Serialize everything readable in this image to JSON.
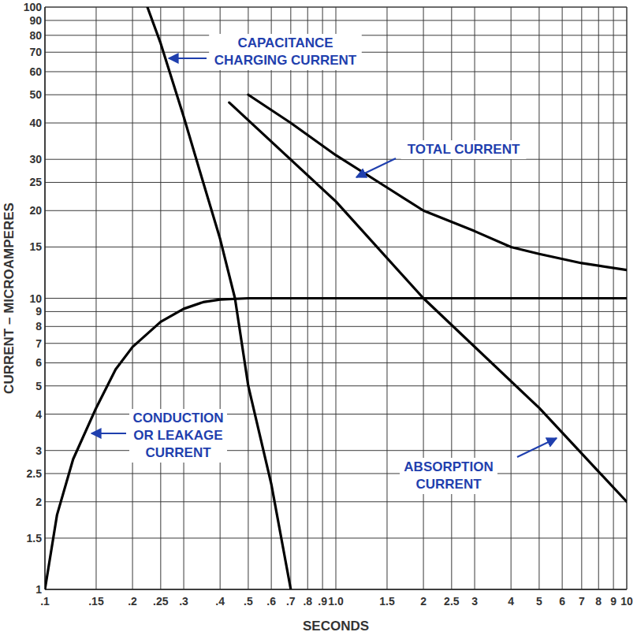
{
  "chart_data": {
    "type": "line",
    "x_label": "SECONDS",
    "y_label": "CURRENT – MICROAMPERES",
    "log": true,
    "grid": true,
    "xlim": [
      0.1,
      10
    ],
    "ylim": [
      1,
      100
    ],
    "xticks": [
      {
        "value": 0.1,
        "label": ".1"
      },
      {
        "value": 0.15,
        "label": ".15"
      },
      {
        "value": 0.2,
        "label": ".2"
      },
      {
        "value": 0.25,
        "label": ".25"
      },
      {
        "value": 0.3,
        "label": ".3"
      },
      {
        "value": 0.4,
        "label": ".4"
      },
      {
        "value": 0.5,
        "label": ".5"
      },
      {
        "value": 0.6,
        "label": ".6"
      },
      {
        "value": 0.7,
        "label": ".7"
      },
      {
        "value": 0.8,
        "label": ".8"
      },
      {
        "value": 0.9,
        "label": ".9"
      },
      {
        "value": 1,
        "label": "1.0"
      },
      1.5,
      2,
      2.5,
      3,
      4,
      5,
      6,
      7,
      8,
      9,
      10
    ],
    "yticks": [
      1,
      1.5,
      2,
      2.5,
      3,
      4,
      5,
      6,
      7,
      8,
      9,
      10,
      15,
      20,
      25,
      30,
      40,
      50,
      60,
      70,
      80,
      90,
      100
    ],
    "series": [
      {
        "name": "CAPACITANCE\nCHARGING CURRENT",
        "color": "#000000",
        "x": [
          0.225,
          0.25,
          0.3,
          0.35,
          0.4,
          0.45,
          0.5,
          0.6,
          0.7
        ],
        "values": [
          100,
          75,
          42,
          25,
          16,
          10,
          5,
          2.3,
          1
        ]
      },
      {
        "name": "TOTAL CURRENT",
        "color": "#000000",
        "x": [
          0.5,
          0.7,
          1,
          1.5,
          2,
          3,
          4,
          5,
          7,
          10
        ],
        "values": [
          50,
          40,
          31,
          24,
          20,
          17,
          15,
          14.2,
          13.2,
          12.5
        ]
      },
      {
        "name": "CONDUCTION\nOR LEAKAGE\nCURRENT",
        "color": "#000000",
        "x": [
          0.1,
          0.11,
          0.125,
          0.15,
          0.175,
          0.2,
          0.25,
          0.3,
          0.35,
          0.4,
          0.5,
          1,
          2,
          5,
          10
        ],
        "values": [
          1,
          1.8,
          2.8,
          4.2,
          5.7,
          6.8,
          8.3,
          9.2,
          9.7,
          9.9,
          10,
          10,
          10,
          10,
          10
        ]
      },
      {
        "name": "ABSORPTION\nCURRENT",
        "color": "#000000",
        "x": [
          0.43,
          1,
          2,
          5,
          10
        ],
        "values": [
          47,
          21.5,
          10,
          4.2,
          2
        ]
      }
    ]
  }
}
